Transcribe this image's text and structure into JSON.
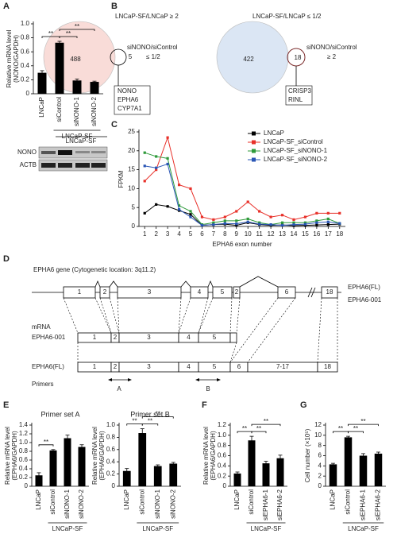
{
  "panel_labels": [
    "A",
    "B",
    "C",
    "D",
    "E",
    "F",
    "G"
  ],
  "blot": {
    "group": "LNCaP-SF",
    "rows": [
      "NONO",
      "ACTB"
    ]
  },
  "venn": [
    {
      "title": "LNCaP-SF/LNCaP ≥ 2",
      "main": 488,
      "overlap": 5,
      "condition": [
        "siNONO/siControl",
        "≤ 1/2"
      ],
      "genes": [
        "NONO",
        "EPHA6",
        "CYP7A1"
      ]
    },
    {
      "title": "LNCaP-SF/LNCaP ≤ 1/2",
      "main": 422,
      "overlap": 18,
      "condition": [
        "siNONO/siControl",
        "≥ 2"
      ],
      "genes": [
        "CRISP3",
        "RINL"
      ]
    }
  ],
  "gene": {
    "title": "EPHA6 gene (Cytogenetic location: 3q11.2)",
    "isoforms": [
      "EPHA6(FL)",
      "EPHA6-001"
    ],
    "exons": [
      "1",
      "2",
      "3",
      "4",
      "5",
      "2",
      "6",
      "18"
    ]
  },
  "mrna": {
    "label": "mRNA",
    "rows": [
      {
        "name": "EPHA6-001",
        "exons": [
          "1",
          "2",
          "3",
          "4",
          "5"
        ]
      },
      {
        "name": "EPHA6(FL)",
        "exons": [
          "1",
          "2",
          "3",
          "4",
          "5",
          "6",
          "7-17",
          "18"
        ]
      }
    ]
  },
  "primers": {
    "label": "Primers",
    "sets": [
      "A",
      "B"
    ]
  },
  "chart_data": [
    {
      "type": "bar",
      "ylabel": [
        "Relative mRNA level",
        "(NONO/GAPDH)"
      ],
      "categories": [
        "LNCaP",
        "siControl",
        "siNONO-1",
        "siNONO-2"
      ],
      "values": [
        0.3,
        0.73,
        0.19,
        0.17
      ],
      "errors": [
        0.03,
        0.02,
        0.02,
        0.01
      ],
      "color": "#000000",
      "ylim": [
        0,
        1
      ],
      "yticks": [
        0,
        0.2,
        0.4,
        0.6,
        0.8,
        {
          "value": 1,
          "label": "1.0"
        }
      ],
      "group": {
        "label": "LNCaP-SF",
        "from": 1,
        "to": 3
      },
      "significance": [
        {
          "pair": [
            0,
            1
          ],
          "label": "**"
        },
        {
          "pair": [
            1,
            2
          ],
          "label": "**"
        },
        {
          "pair": [
            1,
            3
          ],
          "label": "**"
        }
      ]
    },
    {
      "type": "line",
      "ylabel": "FPKM",
      "xlabel": "EPHA6 exon number",
      "x": [
        1,
        2,
        3,
        4,
        5,
        6,
        7,
        8,
        9,
        10,
        11,
        12,
        13,
        14,
        15,
        16,
        17,
        18
      ],
      "xlim": [
        0.5,
        18.5
      ],
      "xticks": [
        1,
        2,
        3,
        4,
        5,
        6,
        7,
        8,
        9,
        10,
        11,
        12,
        13,
        14,
        15,
        16,
        17,
        18
      ],
      "ylim": [
        0,
        25
      ],
      "yticks": [
        0,
        5,
        10,
        15,
        20,
        25
      ],
      "series": [
        {
          "name": "LNCaP",
          "color": "#000000",
          "values": [
            3.5,
            5.8,
            5.3,
            4.2,
            3.2,
            0.3,
            0.5,
            0.6,
            0.3,
            1.0,
            0.5,
            0.3,
            0.4,
            0.2,
            0.3,
            0.4,
            0.5,
            0.6
          ]
        },
        {
          "name": "LNCaP-SF_siControl",
          "color": "#e8312a",
          "values": [
            12,
            15,
            23.5,
            11,
            10,
            2.5,
            1.8,
            2.5,
            4,
            6.5,
            4,
            2.5,
            3,
            1.8,
            2.5,
            3.5,
            3.5,
            3.5
          ]
        },
        {
          "name": "LNCaP-SF_siNONO-1",
          "color": "#2e9a3a",
          "values": [
            19.5,
            18.5,
            18,
            5.5,
            4,
            0.5,
            1,
            1.5,
            1.5,
            2,
            1,
            0.5,
            1,
            1,
            1,
            1.5,
            2,
            0.8
          ]
        },
        {
          "name": "LNCaP-SF_siNONO-2",
          "color": "#2a56b5",
          "values": [
            16,
            15.5,
            16.5,
            4.5,
            2.5,
            0.3,
            0.5,
            0.8,
            0.7,
            1.2,
            0.6,
            0.5,
            0.3,
            0.5,
            0.6,
            1,
            1.2,
            0.8
          ]
        }
      ]
    },
    {
      "type": "bar",
      "title": "Primer set A",
      "ylabel": [
        "Relative mRNA level",
        "(EPHA6/GAPDH)"
      ],
      "categories": [
        "LNCaP",
        "siControl",
        "siNONO-1",
        "siNONO-2"
      ],
      "values": [
        0.25,
        0.82,
        1.1,
        0.9
      ],
      "errors": [
        0.06,
        0.02,
        0.07,
        0.05
      ],
      "color": "#000000",
      "ylim": [
        0,
        1.4
      ],
      "yticks": [
        0,
        0.2,
        0.4,
        0.6,
        0.8,
        {
          "value": 1,
          "label": "1.0"
        },
        1.2,
        1.4
      ],
      "group": {
        "label": "LNCaP-SF",
        "from": 1,
        "to": 3
      },
      "significance": [
        {
          "pair": [
            0,
            1
          ],
          "label": "**"
        }
      ]
    },
    {
      "type": "bar",
      "title": "Primer set B",
      "ylabel": [
        "Relative mRNA level",
        "(EPHA6/GAPDH)"
      ],
      "categories": [
        "LNCaP",
        "siControl",
        "siNONO-1",
        "siNONO-2"
      ],
      "values": [
        0.25,
        0.87,
        0.33,
        0.37
      ],
      "errors": [
        0.04,
        0.07,
        0.02,
        0.02
      ],
      "color": "#000000",
      "ylim": [
        0,
        1
      ],
      "yticks": [
        0,
        0.2,
        0.4,
        0.6,
        0.8,
        {
          "value": 1,
          "label": "1.0"
        }
      ],
      "group": {
        "label": "LNCaP-SF",
        "from": 1,
        "to": 3
      },
      "significance": [
        {
          "pair": [
            0,
            1
          ],
          "label": "**"
        },
        {
          "pair": [
            1,
            2
          ],
          "label": "**"
        },
        {
          "pair": [
            1,
            3
          ],
          "label": "**"
        }
      ]
    },
    {
      "type": "bar",
      "ylabel": [
        "Relative mRNA level",
        "(EPHA6/GAPDH)"
      ],
      "categories": [
        "LNCaP",
        "siControl",
        "siEPHA6-1",
        "siEPHA6-2"
      ],
      "values": [
        0.25,
        0.9,
        0.45,
        0.55
      ],
      "errors": [
        0.03,
        0.08,
        0.04,
        0.06
      ],
      "color": "#000000",
      "ylim": [
        0,
        1.2
      ],
      "yticks": [
        0,
        0.2,
        0.4,
        0.6,
        0.8,
        {
          "value": 1,
          "label": "1.0"
        },
        1.2
      ],
      "group": {
        "label": "LNCaP-SF",
        "from": 1,
        "to": 3
      },
      "significance": [
        {
          "pair": [
            0,
            1
          ],
          "label": "**"
        },
        {
          "pair": [
            1,
            2
          ],
          "label": "**"
        },
        {
          "pair": [
            1,
            3
          ],
          "label": "**"
        }
      ]
    },
    {
      "type": "bar",
      "ylabel": "Cell number (×10⁵)",
      "categories": [
        "LNCaP",
        "siControl",
        "siEPHA6-1",
        "siEPHA6-2"
      ],
      "values": [
        4.3,
        9.6,
        6.0,
        6.4
      ],
      "errors": [
        0.2,
        0.2,
        0.4,
        0.3
      ],
      "color": "#000000",
      "ylim": [
        0,
        12
      ],
      "yticks": [
        0,
        2,
        4,
        6,
        8,
        10,
        12
      ],
      "group": {
        "label": "LNCaP-SF",
        "from": 1,
        "to": 3
      },
      "significance": [
        {
          "pair": [
            0,
            1
          ],
          "label": "**"
        },
        {
          "pair": [
            1,
            2
          ],
          "label": "**"
        },
        {
          "pair": [
            1,
            3
          ],
          "label": "**"
        }
      ]
    }
  ]
}
